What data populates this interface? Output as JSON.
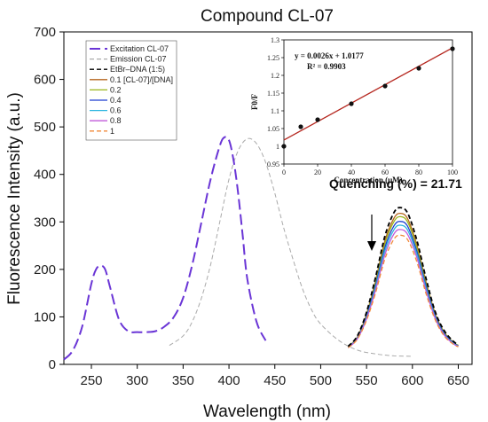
{
  "chart_data": [
    {
      "type": "line",
      "title": "Compound CL-07",
      "xlabel": "Wavelength (nm)",
      "ylabel": "Fluorescence Intensity (a.u.)",
      "xlim": [
        220,
        665
      ],
      "ylim": [
        0,
        700
      ],
      "xticks": [
        250,
        300,
        350,
        400,
        450,
        500,
        550,
        600,
        650
      ],
      "yticks": [
        0,
        100,
        200,
        300,
        400,
        500,
        600,
        700
      ],
      "annotation": "Quenching (%) = 21.71",
      "legend_position": "top-left",
      "series": [
        {
          "name": "Excitation CL-07",
          "color": "#6a35d6",
          "dash": "long-dash",
          "x": [
            220,
            230,
            240,
            250,
            255,
            260,
            265,
            270,
            280,
            290,
            300,
            310,
            320,
            330,
            340,
            350,
            360,
            370,
            380,
            390,
            395,
            400,
            405,
            410,
            415,
            420,
            430,
            440
          ],
          "y": [
            10,
            30,
            80,
            170,
            200,
            208,
            200,
            165,
            95,
            70,
            68,
            68,
            70,
            80,
            100,
            140,
            210,
            300,
            390,
            460,
            478,
            472,
            430,
            360,
            270,
            180,
            90,
            50
          ]
        },
        {
          "name": "Emission CL-07",
          "color": "#aaaaaa",
          "dash": "dashed",
          "x": [
            335,
            350,
            360,
            370,
            380,
            390,
            400,
            410,
            420,
            430,
            440,
            450,
            460,
            470,
            480,
            490,
            500,
            520,
            540,
            560,
            580,
            600
          ],
          "y": [
            40,
            60,
            90,
            140,
            210,
            300,
            390,
            450,
            475,
            465,
            425,
            360,
            285,
            220,
            160,
            115,
            85,
            50,
            30,
            22,
            18,
            17
          ]
        },
        {
          "name": "EtBr–DNA (1:5)",
          "color": "#000000",
          "dash": "dashed",
          "x": [
            530,
            540,
            550,
            560,
            570,
            580,
            587,
            595,
            605,
            615,
            625,
            635,
            645,
            650
          ],
          "y": [
            38,
            60,
            110,
            185,
            270,
            320,
            330,
            318,
            260,
            180,
            110,
            70,
            48,
            42
          ]
        },
        {
          "name": "0.1 [CL-07]/[DNA]",
          "color": "#b5651d",
          "dash": "solid",
          "x": [
            530,
            540,
            550,
            560,
            570,
            580,
            587,
            595,
            605,
            615,
            625,
            635,
            645,
            650
          ],
          "y": [
            37,
            58,
            106,
            178,
            260,
            308,
            318,
            306,
            250,
            173,
            106,
            67,
            46,
            40
          ]
        },
        {
          "name": "0.2",
          "color": "#9ab51a",
          "dash": "solid",
          "x": [
            530,
            540,
            550,
            560,
            570,
            580,
            587,
            595,
            605,
            615,
            625,
            635,
            645,
            650
          ],
          "y": [
            37,
            57,
            104,
            174,
            254,
            301,
            311,
            299,
            245,
            169,
            104,
            66,
            46,
            40
          ]
        },
        {
          "name": "0.4",
          "color": "#1f3fd1",
          "dash": "solid",
          "x": [
            530,
            540,
            550,
            560,
            570,
            580,
            587,
            595,
            605,
            615,
            625,
            635,
            645,
            650
          ],
          "y": [
            36,
            56,
            101,
            168,
            246,
            292,
            301,
            290,
            237,
            164,
            101,
            64,
            45,
            39
          ]
        },
        {
          "name": "0.6",
          "color": "#2bb5e0",
          "dash": "solid",
          "x": [
            530,
            540,
            550,
            560,
            570,
            580,
            587,
            595,
            605,
            615,
            625,
            635,
            645,
            650
          ],
          "y": [
            36,
            55,
            98,
            163,
            239,
            284,
            293,
            282,
            231,
            159,
            98,
            62,
            44,
            38
          ]
        },
        {
          "name": "0.8",
          "color": "#c05ad8",
          "dash": "solid",
          "x": [
            530,
            540,
            550,
            560,
            570,
            580,
            587,
            595,
            605,
            615,
            625,
            635,
            645,
            650
          ],
          "y": [
            35,
            54,
            96,
            158,
            231,
            275,
            284,
            273,
            224,
            154,
            96,
            61,
            43,
            38
          ]
        },
        {
          "name": "1",
          "color": "#f08a3a",
          "dash": "dashed",
          "x": [
            530,
            540,
            550,
            560,
            570,
            580,
            587,
            595,
            605,
            615,
            625,
            635,
            645,
            650
          ],
          "y": [
            35,
            53,
            93,
            152,
            222,
            264,
            272,
            262,
            215,
            148,
            93,
            59,
            42,
            37
          ]
        }
      ]
    },
    {
      "type": "scatter",
      "xlabel": "Concentration (μM)",
      "ylabel": "F0/F",
      "xlim": [
        0,
        100
      ],
      "ylim": [
        0.95,
        1.3
      ],
      "xticks": [
        0,
        20,
        40,
        60,
        80,
        100
      ],
      "yticks": [
        0.95,
        1,
        1.05,
        1.1,
        1.15,
        1.2,
        1.25,
        1.3
      ],
      "equation": "y = 0.0026x + 1.0177",
      "r2": "R² = 0.9903",
      "points": {
        "x": [
          0,
          10,
          20,
          40,
          60,
          80,
          100
        ],
        "y": [
          1.0,
          1.055,
          1.075,
          1.12,
          1.17,
          1.22,
          1.275
        ]
      },
      "fit": {
        "slope": 0.0026,
        "intercept": 1.0177,
        "color": "#b5261e"
      }
    }
  ]
}
